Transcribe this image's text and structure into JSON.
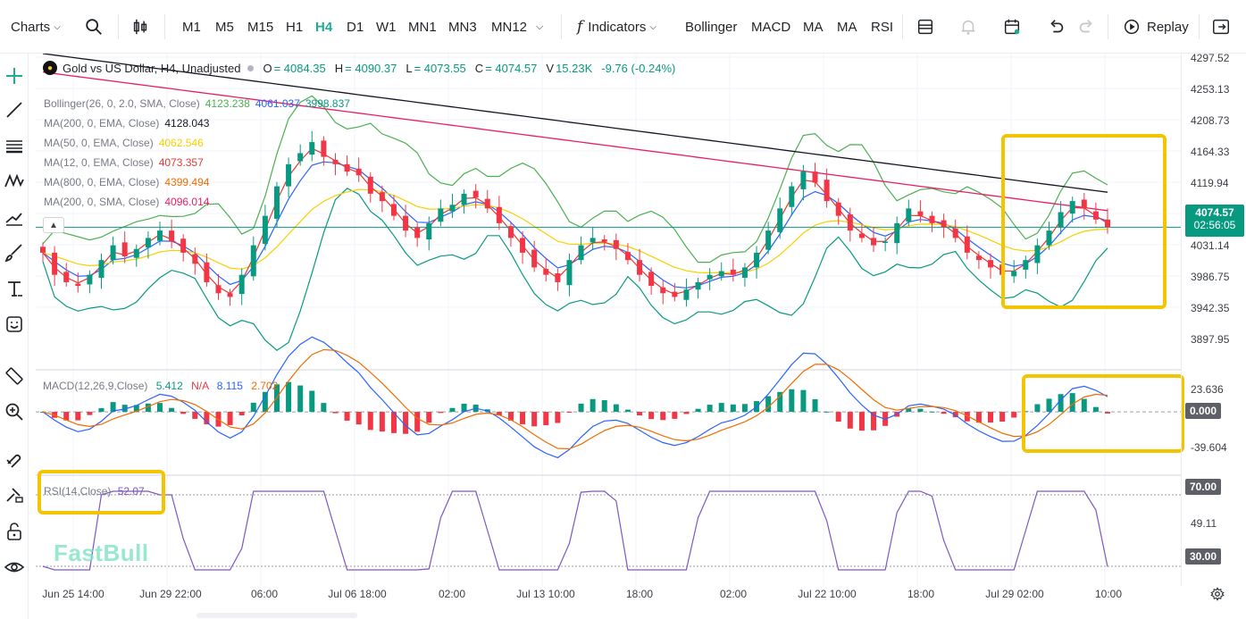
{
  "toolbar": {
    "charts_label": "Charts",
    "timeframes": [
      "M1",
      "M5",
      "M15",
      "H1",
      "H4",
      "D1",
      "W1",
      "MN1",
      "MN3",
      "MN12"
    ],
    "active_timeframe": "H4",
    "indicators_label": "Indicators",
    "indicator_shortcuts": [
      "Bollinger",
      "MACD",
      "MA",
      "MA",
      "RSI"
    ],
    "replay_label": "Replay"
  },
  "symbol": {
    "title": "Gold vs US Dollar, H4, Unadjusted",
    "o_key": "O",
    "o_val": "= 4084.35",
    "h_key": "H",
    "h_val": "= 4090.37",
    "l_key": "L",
    "l_val": "= 4073.55",
    "c_key": "C",
    "c_val": "= 4074.57",
    "v_key": "V",
    "v_val": "15.23K",
    "change": "-9.76 (-0.24%)"
  },
  "legend": [
    {
      "label": "Bollinger(26, 0, 2.0, SMA, Close)",
      "values": [
        "4123.238",
        "4061.037",
        "3998.837"
      ],
      "colors": [
        "#4caf50",
        "#2962ff",
        "#089981"
      ]
    },
    {
      "label": "MA(200, 0, EMA, Close)",
      "values": [
        "4128.043"
      ],
      "colors": [
        "#131722"
      ]
    },
    {
      "label": "MA(50, 0, EMA, Close)",
      "values": [
        "4062.546"
      ],
      "colors": [
        "#f7d000"
      ]
    },
    {
      "label": "MA(12, 0, EMA, Close)",
      "values": [
        "4073.357"
      ],
      "colors": [
        "#e53935"
      ]
    },
    {
      "label": "MA(800, 0, EMA, Close)",
      "values": [
        "4399.494"
      ],
      "colors": [
        "#ef6c00"
      ]
    },
    {
      "label": "MA(200, 0, SMA, Close)",
      "values": [
        "4096.014"
      ],
      "colors": [
        "#e91e63"
      ]
    }
  ],
  "macd_legend": {
    "label": "MACD(12,26,9,Close)",
    "v1": "5.412",
    "v2": "N/A",
    "v3": "8.115",
    "v4": "2.702"
  },
  "rsi_legend": {
    "label": "RSI(14,Close)",
    "value": "52.07"
  },
  "price_axis": {
    "ticks": [
      "4297.52",
      "4253.13",
      "4208.73",
      "4164.33",
      "4119.94",
      "4031.14",
      "3986.75",
      "3942.35",
      "3897.95"
    ],
    "current_price": "4074.57",
    "countdown": "02:56:05",
    "macd_ticks": [
      "23.636",
      "-39.604"
    ],
    "macd_zero": "0.000",
    "rsi_ticks": [
      "49.11"
    ],
    "rsi_upper": "70.00",
    "rsi_lower": "30.00"
  },
  "time_axis": [
    "Jun 25 14:00",
    "Jun 29 22:00",
    "06:00",
    "Jul 06 18:00",
    "02:00",
    "Jul 13 10:00",
    "18:00",
    "02:00",
    "Jul 22 10:00",
    "18:00",
    "Jul 29 02:00",
    "10:00"
  ],
  "watermark": "FastBull",
  "colors": {
    "up": "#089981",
    "down": "#f23645",
    "accent": "#22ab94",
    "highlight": "#f5c400"
  },
  "chart_data": {
    "type": "candlestick",
    "title": "Gold vs US Dollar, H4, Unadjusted",
    "y_range": [
      3880,
      4310
    ],
    "candles_close_approx": [
      4040,
      4010,
      4000,
      3995,
      4010,
      4030,
      4050,
      4035,
      4045,
      4060,
      4070,
      4055,
      4040,
      4025,
      4000,
      3985,
      3980,
      4010,
      4050,
      4090,
      4130,
      4160,
      4175,
      4190,
      4170,
      4160,
      4150,
      4145,
      4120,
      4110,
      4090,
      4070,
      4060,
      4080,
      4100,
      4105,
      4120,
      4115,
      4100,
      4080,
      4060,
      4040,
      4020,
      4010,
      4000,
      4030,
      4050,
      4060,
      4055,
      4045,
      4030,
      4010,
      3995,
      3985,
      3980,
      3990,
      4000,
      4010,
      4015,
      4010,
      4020,
      4040,
      4070,
      4100,
      4130,
      4150,
      4135,
      4110,
      4090,
      4070,
      4060,
      4050,
      4055,
      4080,
      4100,
      4090,
      4080,
      4075,
      4060,
      4040,
      4030,
      4020,
      4010,
      4015,
      4030,
      4050,
      4070,
      4095,
      4110,
      4100,
      4085,
      4074.57
    ],
    "macd_range": [
      -40,
      25
    ],
    "rsi_range": [
      20,
      80
    ],
    "rsi_levels": [
      70,
      30
    ]
  }
}
